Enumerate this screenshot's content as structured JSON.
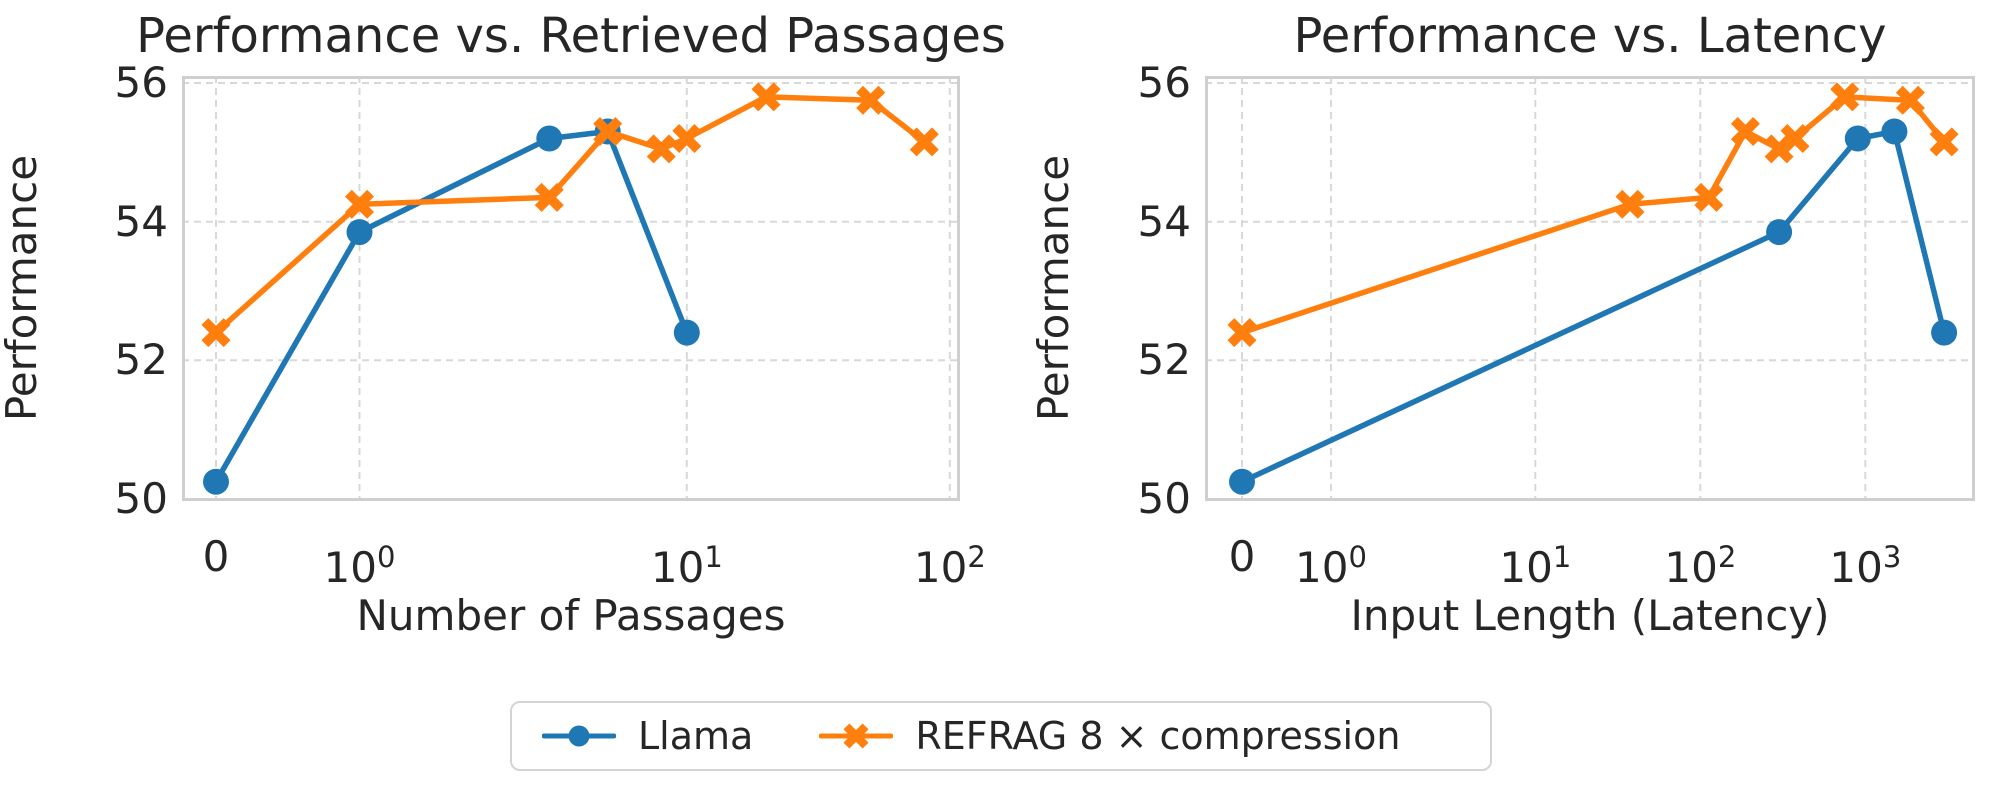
{
  "page": {
    "background": "#ffffff"
  },
  "colors": {
    "llama": "#1f77b4",
    "refrag": "#ff7f0e",
    "grid": "#d8d8d8",
    "axis_border": "#cfcfcf",
    "text": "#262626"
  },
  "legend": {
    "position": "bottom-center",
    "items": [
      {
        "label": "Llama",
        "marker": "circle",
        "color_key": "llama"
      },
      {
        "label": "REFRAG 8 × compression",
        "marker": "x",
        "color_key": "refrag"
      }
    ]
  },
  "chart_data": [
    {
      "type": "line",
      "title": "Performance vs. Retrieved Passages",
      "xlabel": "Number of Passages",
      "ylabel": "Performance",
      "x_scale": "symlog",
      "xlim": [
        0,
        110
      ],
      "ylim": [
        50,
        56.1
      ],
      "grid": true,
      "x_ticks": [
        {
          "value": 0,
          "label": "0"
        },
        {
          "value": 1,
          "label": "10^0"
        },
        {
          "value": 10,
          "label": "10^1"
        },
        {
          "value": 100,
          "label": "10^2"
        }
      ],
      "y_ticks": [
        50,
        52,
        54,
        56
      ],
      "series": [
        {
          "name": "Llama",
          "color_key": "llama",
          "marker": "circle",
          "x": [
            0,
            1,
            3,
            5,
            10
          ],
          "y": [
            50.25,
            53.85,
            55.2,
            55.3,
            52.4
          ]
        },
        {
          "name": "REFRAG 8 × compression",
          "color_key": "refrag",
          "marker": "x",
          "x": [
            0,
            1,
            3,
            5,
            8,
            10,
            20,
            50,
            80
          ],
          "y": [
            52.4,
            54.25,
            54.35,
            55.3,
            55.05,
            55.2,
            55.8,
            55.75,
            55.15
          ]
        }
      ]
    },
    {
      "type": "line",
      "title": "Performance vs. Latency",
      "xlabel": "Input Length (Latency)",
      "ylabel": "Performance",
      "x_scale": "symlog",
      "xlim": [
        0,
        4800
      ],
      "ylim": [
        50,
        56.1
      ],
      "grid": true,
      "x_ticks": [
        {
          "value": 0,
          "label": "0"
        },
        {
          "value": 1,
          "label": "10^0"
        },
        {
          "value": 10,
          "label": "10^1"
        },
        {
          "value": 100,
          "label": "10^2"
        },
        {
          "value": 1000,
          "label": "10^3"
        }
      ],
      "y_ticks": [
        50,
        52,
        54,
        56
      ],
      "series": [
        {
          "name": "Llama",
          "color_key": "llama",
          "marker": "circle",
          "x": [
            0,
            300,
            900,
            1500,
            3000
          ],
          "y": [
            50.25,
            53.85,
            55.2,
            55.3,
            52.4
          ]
        },
        {
          "name": "REFRAG 8 × compression",
          "color_key": "refrag",
          "marker": "x",
          "x": [
            0,
            37.5,
            112.5,
            187.5,
            300,
            375,
            750,
            1875,
            3000
          ],
          "y": [
            52.4,
            54.25,
            54.35,
            55.3,
            55.05,
            55.2,
            55.8,
            55.75,
            55.15
          ]
        }
      ]
    }
  ]
}
